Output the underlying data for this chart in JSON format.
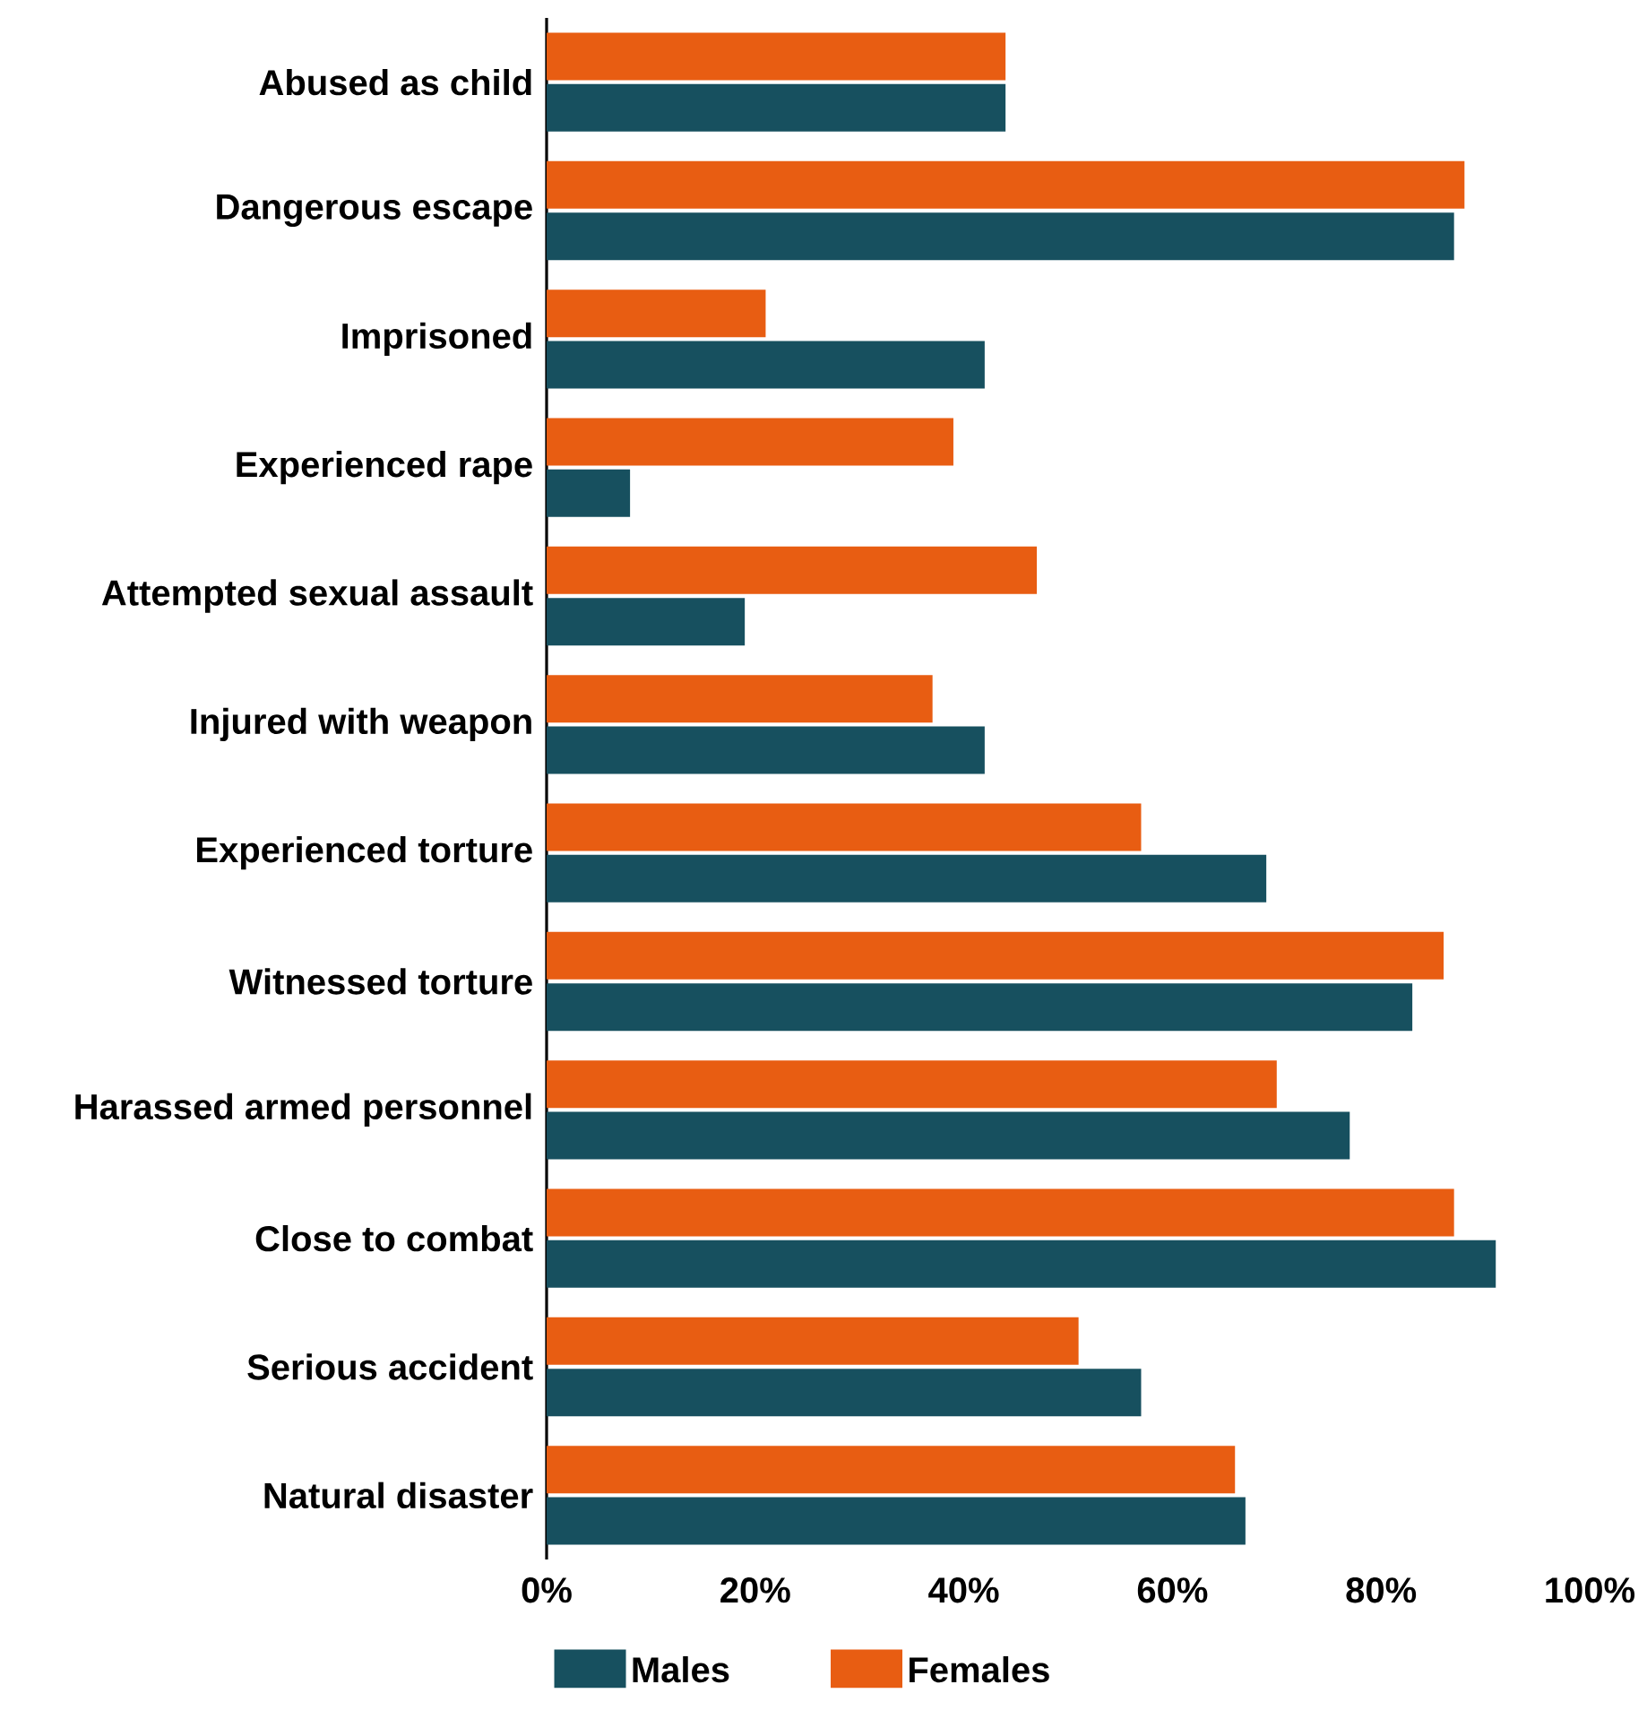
{
  "chart_data": {
    "type": "bar",
    "orientation": "horizontal",
    "categories": [
      "Abused as child",
      "Dangerous escape",
      "Imprisoned",
      "Experienced rape",
      "Attempted sexual assault",
      "Injured with weapon",
      "Experienced torture",
      "Witnessed torture",
      "Harassed armed personnel",
      "Close to combat",
      "Serious accident",
      "Natural disaster"
    ],
    "series": [
      {
        "name": "Males",
        "color": "#17505f",
        "values": [
          44,
          87,
          42,
          8,
          19,
          42,
          69,
          83,
          77,
          91,
          57,
          67
        ]
      },
      {
        "name": "Females",
        "color": "#e85d12",
        "values": [
          44,
          88,
          21,
          39,
          47,
          37,
          57,
          86,
          70,
          87,
          51,
          66
        ]
      }
    ],
    "xlim": [
      0,
      100
    ],
    "xticks": [
      {
        "value": 0,
        "label": "0%"
      },
      {
        "value": 20,
        "label": "20%"
      },
      {
        "value": 40,
        "label": "40%"
      },
      {
        "value": 60,
        "label": "60%"
      },
      {
        "value": 80,
        "label": "80%"
      },
      {
        "value": 100,
        "label": "100%"
      }
    ],
    "legend": "bottom"
  }
}
